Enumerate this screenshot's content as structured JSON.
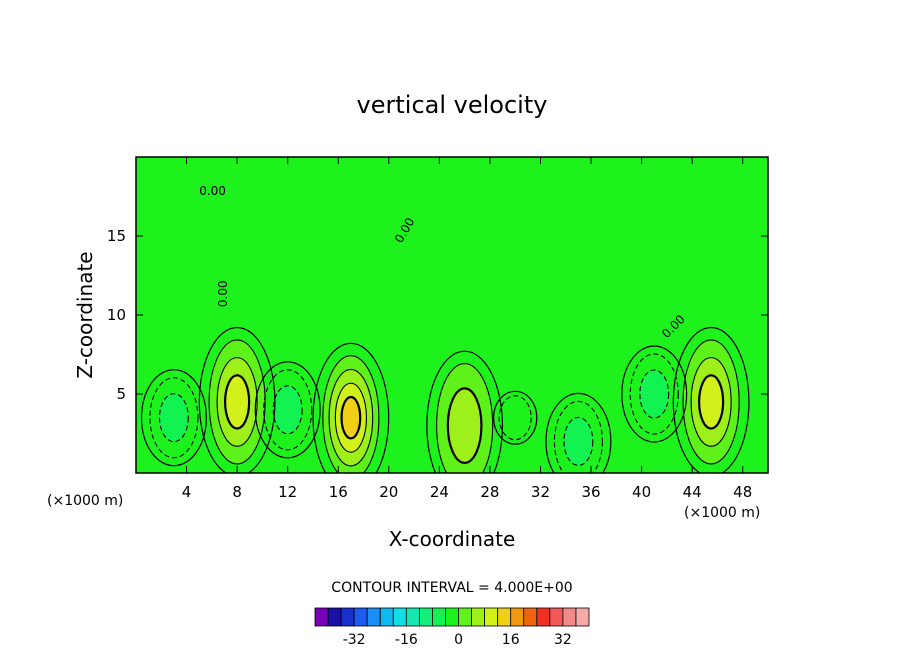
{
  "chart_data": {
    "type": "contour",
    "title": "vertical velocity",
    "xlabel": "X-coordinate",
    "ylabel": "Z-coordinate",
    "x_unit_label": "(×1000 m)",
    "xlim": [
      0,
      50
    ],
    "ylim": [
      0,
      20
    ],
    "x_ticks": [
      4,
      8,
      12,
      16,
      20,
      24,
      28,
      32,
      36,
      40,
      44,
      48
    ],
    "y_ticks": [
      5,
      10,
      15
    ],
    "contour_interval_label": "CONTOUR INTERVAL = 4.000E+00",
    "contour_interval": 4,
    "contour_labels": [
      "0.00",
      "0.00",
      "0.00",
      "0.00"
    ],
    "colorbar": {
      "levels": [
        -40,
        -36,
        -32,
        -28,
        -24,
        -20,
        -16,
        -12,
        -8,
        -4,
        0,
        4,
        8,
        12,
        16,
        20,
        24,
        28,
        32,
        36
      ],
      "colors": [
        "#7a00b8",
        "#1a10a8",
        "#1830d0",
        "#1c5cf0",
        "#1a8ef5",
        "#10b8f0",
        "#10e0e6",
        "#16e6b0",
        "#16ee7c",
        "#12f250",
        "#1ef21c",
        "#5ef21a",
        "#9ef01a",
        "#d2f01a",
        "#f0d016",
        "#f09a14",
        "#f0640e",
        "#f03020",
        "#f25a5a",
        "#f28a8a",
        "#f5aaaa"
      ],
      "tick_labels": [
        "-32",
        "-16",
        "0",
        "16",
        "32"
      ],
      "tick_values": [
        -32,
        -16,
        0,
        16,
        32
      ]
    },
    "features": [
      {
        "kind": "updraft",
        "x": 8,
        "z": 4.5,
        "max": 12
      },
      {
        "kind": "updraft",
        "x": 17,
        "z": 3.5,
        "max": 14
      },
      {
        "kind": "updraft",
        "x": 45.5,
        "z": 4.5,
        "max": 12
      },
      {
        "kind": "updraft",
        "x": 26,
        "z": 3,
        "max": 6
      },
      {
        "kind": "downdraft",
        "x": 3,
        "z": 3.5,
        "min": -8
      },
      {
        "kind": "downdraft",
        "x": 12,
        "z": 4,
        "min": -8
      },
      {
        "kind": "downdraft",
        "x": 35,
        "z": 2,
        "min": -6
      },
      {
        "kind": "downdraft",
        "x": 41,
        "z": 5,
        "min": -8
      },
      {
        "kind": "weak_updraft",
        "x": 30,
        "z": 3.5,
        "max": -2
      }
    ]
  },
  "colors": {
    "background": "#ffffff",
    "field_base": "#1ef21c",
    "field_light": "#5ef21a"
  }
}
